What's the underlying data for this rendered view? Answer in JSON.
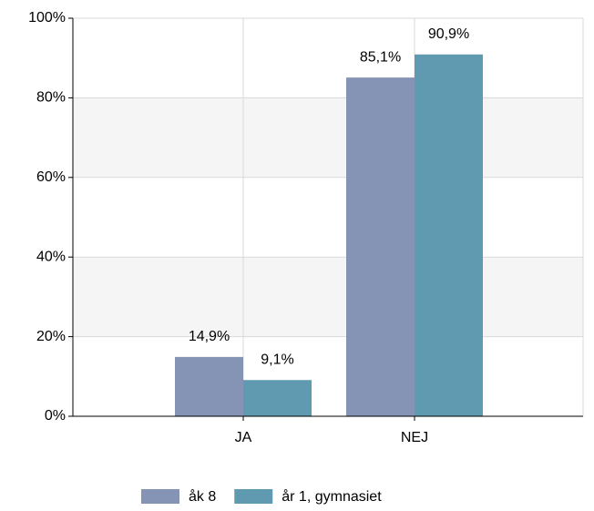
{
  "chart_data": {
    "type": "bar",
    "categories": [
      "JA",
      "NEJ"
    ],
    "series": [
      {
        "name": "åk 8",
        "color": "#8593b5",
        "values": [
          14.9,
          85.1
        ],
        "value_labels": [
          "14,9%",
          "85,1%"
        ]
      },
      {
        "name": "år 1, gymnasiet",
        "color": "#5f9ab0",
        "values": [
          9.1,
          90.9
        ],
        "value_labels": [
          "9,1%",
          "90,9%"
        ]
      }
    ],
    "ylim": [
      0,
      100
    ],
    "yticks": [
      {
        "value": 0,
        "label": "0%"
      },
      {
        "value": 20,
        "label": "20%"
      },
      {
        "value": 40,
        "label": "40%"
      },
      {
        "value": 60,
        "label": "60%"
      },
      {
        "value": 80,
        "label": "80%"
      },
      {
        "value": 100,
        "label": "100%"
      }
    ],
    "grid": true,
    "legend": "bottom"
  }
}
